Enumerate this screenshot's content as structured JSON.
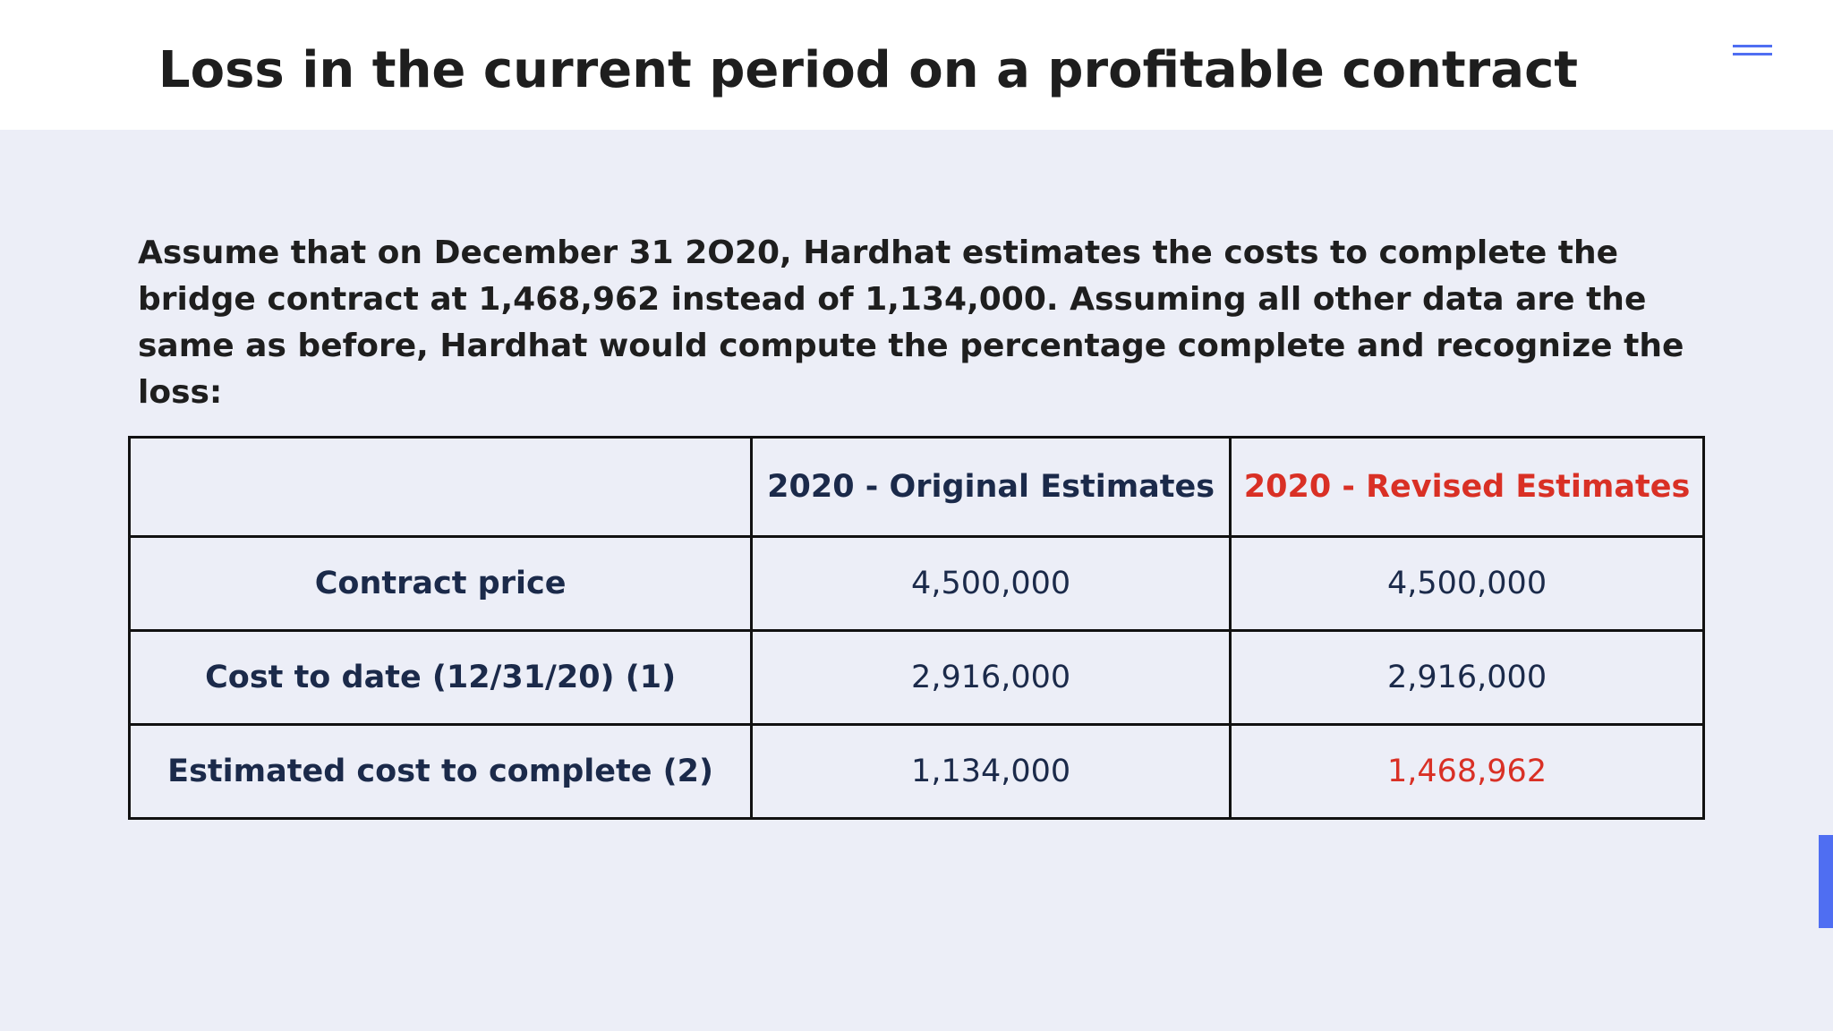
{
  "slide": {
    "title": "Loss in the current period on a profitable contract",
    "intro": "Assume that on December 31 2O20, Hardhat estimates the costs to complete the bridge contract at 1,468,962 instead of 1,134,000. Assuming all other data are the same as before, Hardhat would compute the percentage complete and recognize the loss:"
  },
  "table": {
    "headers": [
      "",
      "2020 - Original Estimates",
      "2020 - Revised Estimates"
    ],
    "rows": [
      {
        "label": "Contract price",
        "original": "4,500,000",
        "revised": "4,500,000"
      },
      {
        "label": "Cost to date (12/31/20) (1)",
        "original": "2,916,000",
        "revised": "2,916,000"
      },
      {
        "label": "Estimated cost to complete (2)",
        "original": "1,134,000",
        "revised": "1,468,962"
      }
    ]
  },
  "icons": {
    "menu": "hamburger-menu-icon"
  },
  "colors": {
    "accent": "#4f6ef2",
    "highlight": "#d93025",
    "navy_text": "#1b2a4a",
    "content_background": "#eceef7"
  }
}
